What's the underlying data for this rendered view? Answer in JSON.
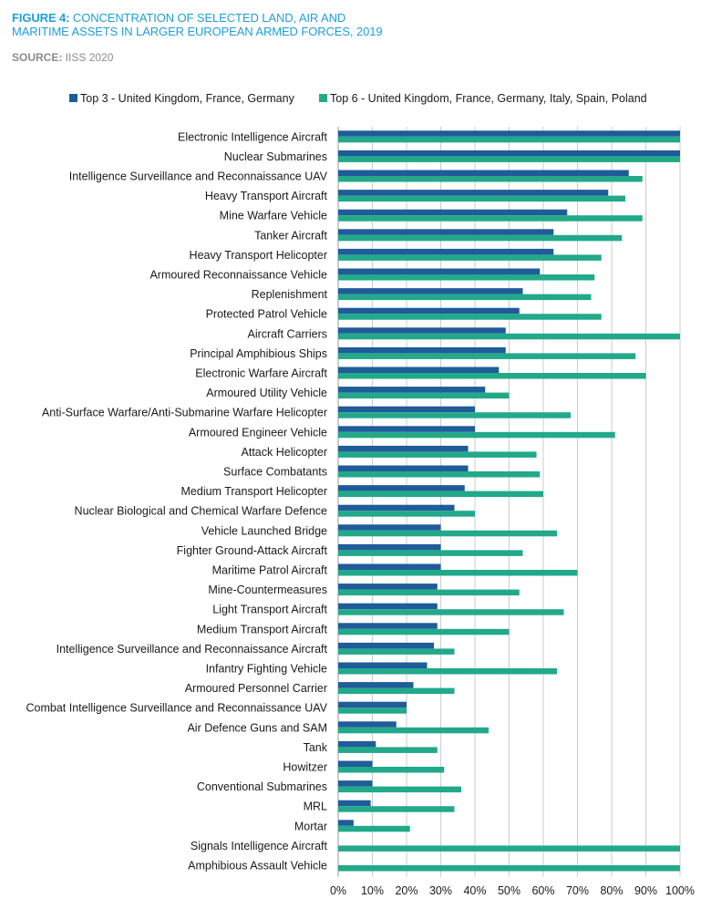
{
  "header": {
    "title_prefix": "FIGURE 4:",
    "title_line1": " CONCENTRATION OF SELECTED LAND, AIR AND",
    "title_line2": "MARITIME ASSETS IN LARGER EUROPEAN ARMED FORCES, 2019",
    "source_prefix": "SOURCE:",
    "source_text": " IISS 2020"
  },
  "colors": {
    "series1": "#1f5c99",
    "series2": "#22a98a",
    "grid": "#cccccc",
    "title": "#1e9fd8"
  },
  "chart_data": {
    "type": "bar",
    "orientation": "horizontal",
    "title": "FIGURE 4: CONCENTRATION OF SELECTED LAND, AIR AND MARITIME ASSETS IN LARGER EUROPEAN ARMED FORCES, 2019",
    "xlim": [
      0,
      100
    ],
    "x_ticks": [
      "0%",
      "10%",
      "20%",
      "30%",
      "40%",
      "50%",
      "60%",
      "70%",
      "80%",
      "90%",
      "100%"
    ],
    "grid": true,
    "legend_position": "top",
    "categories": [
      "Electronic Intelligence Aircraft",
      "Nuclear Submarines",
      "Intelligence Surveillance and Reconnaissance UAV",
      "Heavy Transport Aircraft",
      "Mine Warfare Vehicle",
      "Tanker Aircraft",
      "Heavy Transport Helicopter",
      "Armoured Reconnaissance Vehicle",
      "Replenishment",
      "Protected Patrol Vehicle",
      "Aircraft Carriers",
      "Principal Amphibious Ships",
      "Electronic Warfare Aircraft",
      "Armoured Utility Vehicle",
      "Anti-Surface Warfare/Anti-Submarine Warfare Helicopter",
      "Armoured Engineer Vehicle",
      "Attack Helicopter",
      "Surface Combatants",
      "Medium Transport Helicopter",
      "Nuclear Biological and Chemical Warfare Defence",
      "Vehicle Launched Bridge",
      "Fighter Ground-Attack Aircraft",
      "Maritime Patrol Aircraft",
      "Mine-Countermeasures",
      "Light Transport Aircraft",
      "Medium Transport Aircraft",
      "Intelligence Surveillance and Reconnaissance Aircraft",
      "Infantry Fighting Vehicle",
      "Armoured Personnel Carrier",
      "Combat Intelligence Surveillance and Reconnaissance UAV",
      "Air Defence Guns and SAM",
      "Tank",
      "Howitzer",
      "Conventional Submarines",
      "MRL",
      "Mortar",
      "Signals Intelligence Aircraft",
      "Amphibious Assault Vehicle"
    ],
    "series": [
      {
        "name": "Top 3 - United Kingdom, France, Germany",
        "values": [
          100,
          100,
          85,
          79,
          67,
          63,
          63,
          59,
          54,
          53,
          49,
          49,
          47,
          43,
          40,
          40,
          38,
          38,
          37,
          34,
          30,
          30,
          30,
          29,
          29,
          29,
          28,
          26,
          22,
          20,
          17,
          11,
          10,
          10,
          9.5,
          4.5,
          0,
          0
        ]
      },
      {
        "name": "Top 6 - United Kingdom, France, Germany, Italy, Spain, Poland",
        "values": [
          100,
          100,
          89,
          84,
          89,
          83,
          77,
          75,
          74,
          77,
          100,
          87,
          90,
          50,
          68,
          81,
          58,
          59,
          60,
          40,
          64,
          54,
          70,
          53,
          66,
          50,
          34,
          64,
          34,
          20,
          44,
          29,
          31,
          36,
          34,
          21,
          100,
          100
        ]
      }
    ]
  }
}
